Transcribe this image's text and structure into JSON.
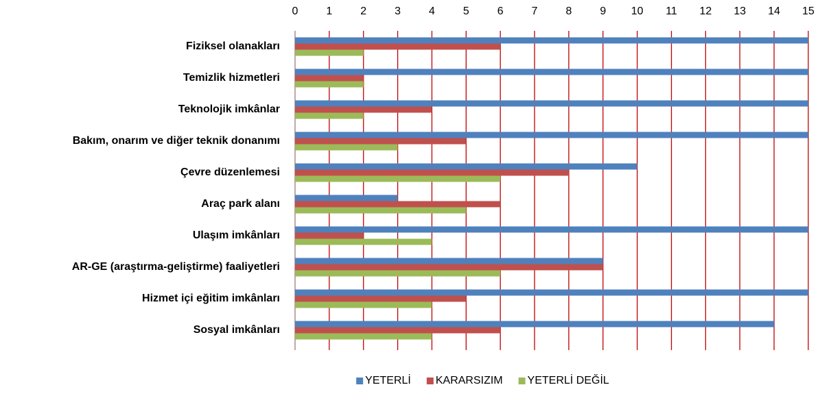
{
  "chart_data": {
    "type": "bar",
    "orientation": "horizontal",
    "categories": [
      "Fiziksel olanakları",
      "Temizlik hizmetleri",
      "Teknolojik imkânlar",
      "Bakım, onarım ve diğer teknik donanımı",
      "Çevre düzenlemesi",
      "Araç park alanı",
      "Ulaşım imkânları",
      "AR-GE (araştırma-geliştirme) faaliyetleri",
      "Hizmet içi eğitim imkânları",
      "Sosyal imkânları"
    ],
    "series": [
      {
        "name": "YETERLİ",
        "color": "#4f81bd",
        "values": [
          15,
          15,
          15,
          15,
          10,
          3,
          15,
          9,
          15,
          14
        ]
      },
      {
        "name": "KARARSIZIM",
        "color": "#c0504d",
        "values": [
          6,
          2,
          4,
          5,
          8,
          6,
          2,
          9,
          5,
          6
        ]
      },
      {
        "name": "YETERLİ DEĞİL",
        "color": "#9bbb59",
        "values": [
          2,
          2,
          2,
          3,
          6,
          5,
          4,
          6,
          4,
          4
        ]
      }
    ],
    "xlim": [
      0,
      15
    ],
    "xticks": [
      0,
      1,
      2,
      3,
      4,
      5,
      6,
      7,
      8,
      9,
      10,
      11,
      12,
      13,
      14,
      15
    ],
    "grid": true,
    "grid_color": "#c00000",
    "legend": "bottom"
  }
}
